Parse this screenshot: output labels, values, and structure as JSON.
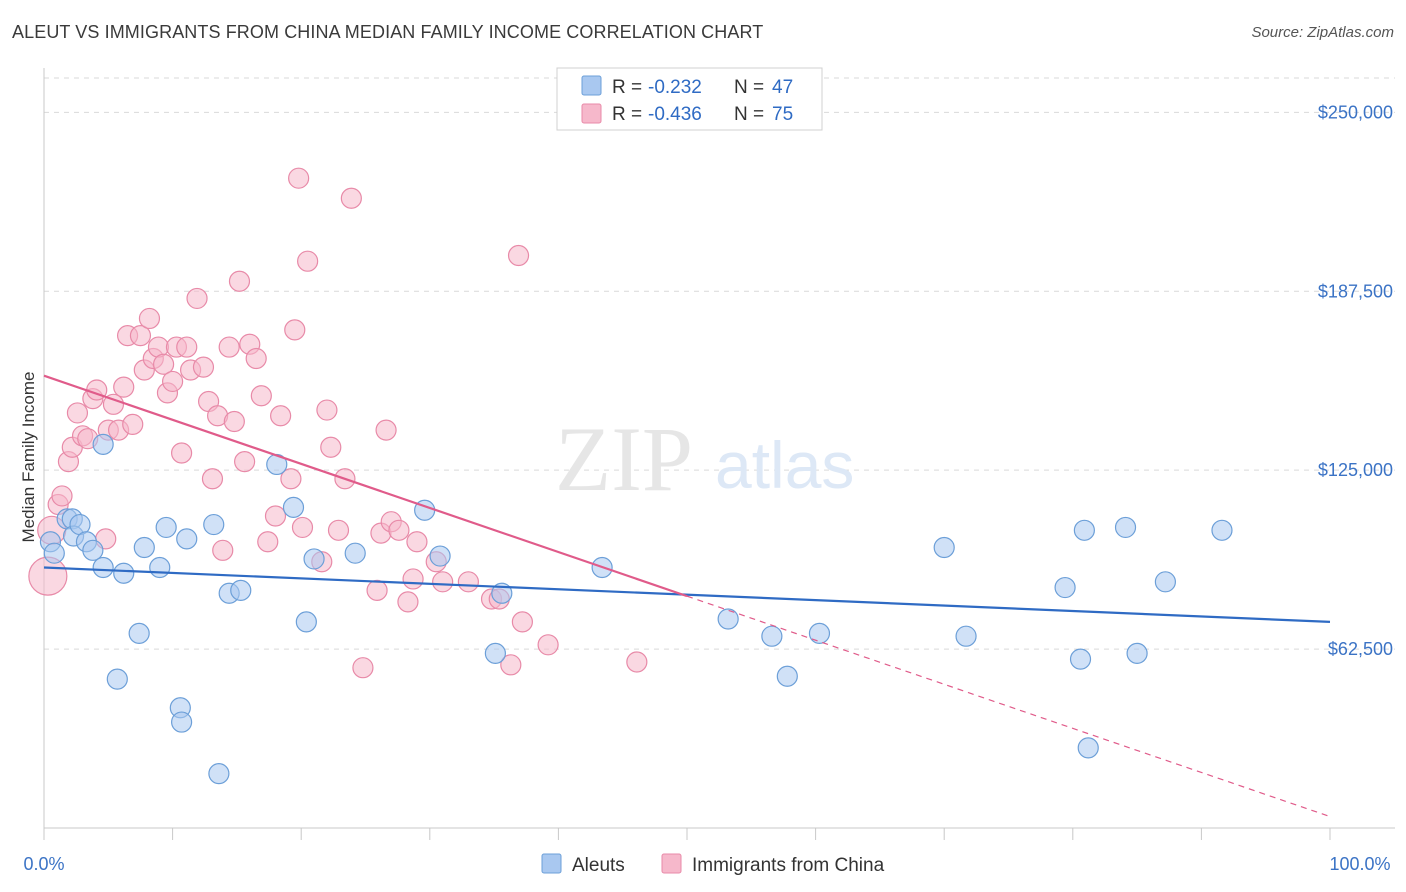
{
  "title": "ALEUT VS IMMIGRANTS FROM CHINA MEDIAN FAMILY INCOME CORRELATION CHART",
  "source": "Source: ZipAtlas.com",
  "watermark": {
    "zip": "ZIP",
    "atlas": "atlas"
  },
  "legend": {
    "rows": [
      {
        "r_label": "R =",
        "r_value": "-0.232",
        "n_label": "N =",
        "n_value": "47",
        "color": "#a9c8f0"
      },
      {
        "r_label": "R =",
        "r_value": "-0.436",
        "n_label": "N =",
        "n_value": "75",
        "color": "#f6b8cb"
      }
    ]
  },
  "colors": {
    "aleut_fill": "#a9c8f0",
    "aleut_stroke": "#6c9fd8",
    "aleut_line": "#2f6bc4",
    "china_fill": "#f6b8cb",
    "china_stroke": "#e88aa8",
    "china_line": "#e05b8a",
    "grid": "#d9d9d9",
    "axis_label": "#3b73c5"
  },
  "chart_data": {
    "type": "scatter",
    "title": "ALEUT VS IMMIGRANTS FROM CHINA MEDIAN FAMILY INCOME CORRELATION CHART",
    "xlabel": "",
    "ylabel": "Median Family Income",
    "xlim": [
      0,
      100
    ],
    "ylim": [
      0,
      262000
    ],
    "x_tick_labels": [
      "0.0%",
      "100.0%"
    ],
    "y_ticks": [
      62500,
      125000,
      187500,
      250000
    ],
    "y_tick_labels": [
      "$62,500",
      "$125,000",
      "$187,500",
      "$250,000"
    ],
    "grid": true,
    "legend_bottom": [
      "Aleuts",
      "Immigrants from China"
    ],
    "series": [
      {
        "name": "Aleuts",
        "r": -0.232,
        "n": 47,
        "trend": {
          "x": [
            0,
            100
          ],
          "y": [
            91000,
            72000
          ],
          "dashed_from": null
        },
        "points": [
          {
            "x": 0.5,
            "y": 100000,
            "r": 10
          },
          {
            "x": 0.8,
            "y": 96000,
            "r": 10
          },
          {
            "x": 1.8,
            "y": 108000,
            "r": 10
          },
          {
            "x": 2.2,
            "y": 108000,
            "r": 10
          },
          {
            "x": 2.3,
            "y": 102000,
            "r": 10
          },
          {
            "x": 2.8,
            "y": 106000,
            "r": 10
          },
          {
            "x": 3.3,
            "y": 100000,
            "r": 10
          },
          {
            "x": 3.8,
            "y": 97000,
            "r": 10
          },
          {
            "x": 4.6,
            "y": 134000,
            "r": 10
          },
          {
            "x": 4.6,
            "y": 91000,
            "r": 10
          },
          {
            "x": 5.7,
            "y": 52000,
            "r": 10
          },
          {
            "x": 6.2,
            "y": 89000,
            "r": 10
          },
          {
            "x": 7.4,
            "y": 68000,
            "r": 10
          },
          {
            "x": 7.8,
            "y": 98000,
            "r": 10
          },
          {
            "x": 9.0,
            "y": 91000,
            "r": 10
          },
          {
            "x": 9.5,
            "y": 105000,
            "r": 10
          },
          {
            "x": 10.6,
            "y": 42000,
            "r": 10
          },
          {
            "x": 10.7,
            "y": 37000,
            "r": 10
          },
          {
            "x": 11.1,
            "y": 101000,
            "r": 10
          },
          {
            "x": 13.2,
            "y": 106000,
            "r": 10
          },
          {
            "x": 13.6,
            "y": 19000,
            "r": 10
          },
          {
            "x": 14.4,
            "y": 82000,
            "r": 10
          },
          {
            "x": 15.3,
            "y": 83000,
            "r": 10
          },
          {
            "x": 18.1,
            "y": 127000,
            "r": 10
          },
          {
            "x": 19.4,
            "y": 112000,
            "r": 10
          },
          {
            "x": 20.4,
            "y": 72000,
            "r": 10
          },
          {
            "x": 21.0,
            "y": 94000,
            "r": 10
          },
          {
            "x": 24.2,
            "y": 96000,
            "r": 10
          },
          {
            "x": 29.6,
            "y": 111000,
            "r": 10
          },
          {
            "x": 30.8,
            "y": 95000,
            "r": 10
          },
          {
            "x": 35.1,
            "y": 61000,
            "r": 10
          },
          {
            "x": 35.6,
            "y": 82000,
            "r": 10
          },
          {
            "x": 43.4,
            "y": 91000,
            "r": 10
          },
          {
            "x": 53.2,
            "y": 73000,
            "r": 10
          },
          {
            "x": 56.6,
            "y": 67000,
            "r": 10
          },
          {
            "x": 57.8,
            "y": 53000,
            "r": 10
          },
          {
            "x": 60.3,
            "y": 68000,
            "r": 10
          },
          {
            "x": 70.0,
            "y": 98000,
            "r": 10
          },
          {
            "x": 71.7,
            "y": 67000,
            "r": 10
          },
          {
            "x": 79.4,
            "y": 84000,
            "r": 10
          },
          {
            "x": 80.6,
            "y": 59000,
            "r": 10
          },
          {
            "x": 80.9,
            "y": 104000,
            "r": 10
          },
          {
            "x": 81.2,
            "y": 28000,
            "r": 10
          },
          {
            "x": 84.1,
            "y": 105000,
            "r": 10
          },
          {
            "x": 85.0,
            "y": 61000,
            "r": 10
          },
          {
            "x": 87.2,
            "y": 86000,
            "r": 10
          },
          {
            "x": 91.6,
            "y": 104000,
            "r": 10
          }
        ]
      },
      {
        "name": "Immigrants from China",
        "r": -0.436,
        "n": 75,
        "trend": {
          "x": [
            0,
            100
          ],
          "y": [
            158000,
            4000
          ],
          "dashed_from": 50
        },
        "points": [
          {
            "x": 0.3,
            "y": 88000,
            "r": 19
          },
          {
            "x": 0.6,
            "y": 104000,
            "r": 14
          },
          {
            "x": 1.1,
            "y": 113000,
            "r": 10
          },
          {
            "x": 1.4,
            "y": 116000,
            "r": 10
          },
          {
            "x": 1.9,
            "y": 128000,
            "r": 10
          },
          {
            "x": 2.2,
            "y": 133000,
            "r": 10
          },
          {
            "x": 2.6,
            "y": 145000,
            "r": 10
          },
          {
            "x": 3.0,
            "y": 137000,
            "r": 10
          },
          {
            "x": 3.4,
            "y": 136000,
            "r": 10
          },
          {
            "x": 3.8,
            "y": 150000,
            "r": 10
          },
          {
            "x": 4.1,
            "y": 153000,
            "r": 10
          },
          {
            "x": 4.8,
            "y": 101000,
            "r": 10
          },
          {
            "x": 5.0,
            "y": 139000,
            "r": 10
          },
          {
            "x": 5.4,
            "y": 148000,
            "r": 10
          },
          {
            "x": 5.8,
            "y": 139000,
            "r": 10
          },
          {
            "x": 6.2,
            "y": 154000,
            "r": 10
          },
          {
            "x": 6.5,
            "y": 172000,
            "r": 10
          },
          {
            "x": 6.9,
            "y": 141000,
            "r": 10
          },
          {
            "x": 7.5,
            "y": 172000,
            "r": 10
          },
          {
            "x": 7.8,
            "y": 160000,
            "r": 10
          },
          {
            "x": 8.2,
            "y": 178000,
            "r": 10
          },
          {
            "x": 8.5,
            "y": 164000,
            "r": 10
          },
          {
            "x": 8.9,
            "y": 168000,
            "r": 10
          },
          {
            "x": 9.3,
            "y": 162000,
            "r": 10
          },
          {
            "x": 9.6,
            "y": 152000,
            "r": 10
          },
          {
            "x": 10.0,
            "y": 156000,
            "r": 10
          },
          {
            "x": 10.3,
            "y": 168000,
            "r": 10
          },
          {
            "x": 10.7,
            "y": 131000,
            "r": 10
          },
          {
            "x": 11.1,
            "y": 168000,
            "r": 10
          },
          {
            "x": 11.4,
            "y": 160000,
            "r": 10
          },
          {
            "x": 11.9,
            "y": 185000,
            "r": 10
          },
          {
            "x": 12.4,
            "y": 161000,
            "r": 10
          },
          {
            "x": 12.8,
            "y": 149000,
            "r": 10
          },
          {
            "x": 13.1,
            "y": 122000,
            "r": 10
          },
          {
            "x": 13.5,
            "y": 144000,
            "r": 10
          },
          {
            "x": 13.9,
            "y": 97000,
            "r": 10
          },
          {
            "x": 14.4,
            "y": 168000,
            "r": 10
          },
          {
            "x": 14.8,
            "y": 142000,
            "r": 10
          },
          {
            "x": 15.2,
            "y": 191000,
            "r": 10
          },
          {
            "x": 15.6,
            "y": 128000,
            "r": 10
          },
          {
            "x": 16.0,
            "y": 169000,
            "r": 10
          },
          {
            "x": 16.5,
            "y": 164000,
            "r": 10
          },
          {
            "x": 16.9,
            "y": 151000,
            "r": 10
          },
          {
            "x": 17.4,
            "y": 100000,
            "r": 10
          },
          {
            "x": 18.0,
            "y": 109000,
            "r": 10
          },
          {
            "x": 18.4,
            "y": 144000,
            "r": 10
          },
          {
            "x": 19.2,
            "y": 122000,
            "r": 10
          },
          {
            "x": 19.5,
            "y": 174000,
            "r": 10
          },
          {
            "x": 19.8,
            "y": 227000,
            "r": 10
          },
          {
            "x": 20.1,
            "y": 105000,
            "r": 10
          },
          {
            "x": 20.5,
            "y": 198000,
            "r": 10
          },
          {
            "x": 21.6,
            "y": 93000,
            "r": 10
          },
          {
            "x": 22.0,
            "y": 146000,
            "r": 10
          },
          {
            "x": 22.3,
            "y": 133000,
            "r": 10
          },
          {
            "x": 22.9,
            "y": 104000,
            "r": 10
          },
          {
            "x": 23.4,
            "y": 122000,
            "r": 10
          },
          {
            "x": 23.9,
            "y": 220000,
            "r": 10
          },
          {
            "x": 24.8,
            "y": 56000,
            "r": 10
          },
          {
            "x": 25.9,
            "y": 83000,
            "r": 10
          },
          {
            "x": 26.2,
            "y": 103000,
            "r": 10
          },
          {
            "x": 26.6,
            "y": 139000,
            "r": 10
          },
          {
            "x": 27.0,
            "y": 107000,
            "r": 10
          },
          {
            "x": 27.6,
            "y": 104000,
            "r": 10
          },
          {
            "x": 28.3,
            "y": 79000,
            "r": 10
          },
          {
            "x": 28.7,
            "y": 87000,
            "r": 10
          },
          {
            "x": 29.0,
            "y": 100000,
            "r": 10
          },
          {
            "x": 30.5,
            "y": 93000,
            "r": 10
          },
          {
            "x": 31.0,
            "y": 86000,
            "r": 10
          },
          {
            "x": 33.0,
            "y": 86000,
            "r": 10
          },
          {
            "x": 34.8,
            "y": 80000,
            "r": 10
          },
          {
            "x": 35.4,
            "y": 80000,
            "r": 10
          },
          {
            "x": 36.3,
            "y": 57000,
            "r": 10
          },
          {
            "x": 36.9,
            "y": 200000,
            "r": 10
          },
          {
            "x": 37.2,
            "y": 72000,
            "r": 10
          },
          {
            "x": 39.2,
            "y": 64000,
            "r": 10
          },
          {
            "x": 46.1,
            "y": 58000,
            "r": 10
          }
        ]
      }
    ]
  }
}
